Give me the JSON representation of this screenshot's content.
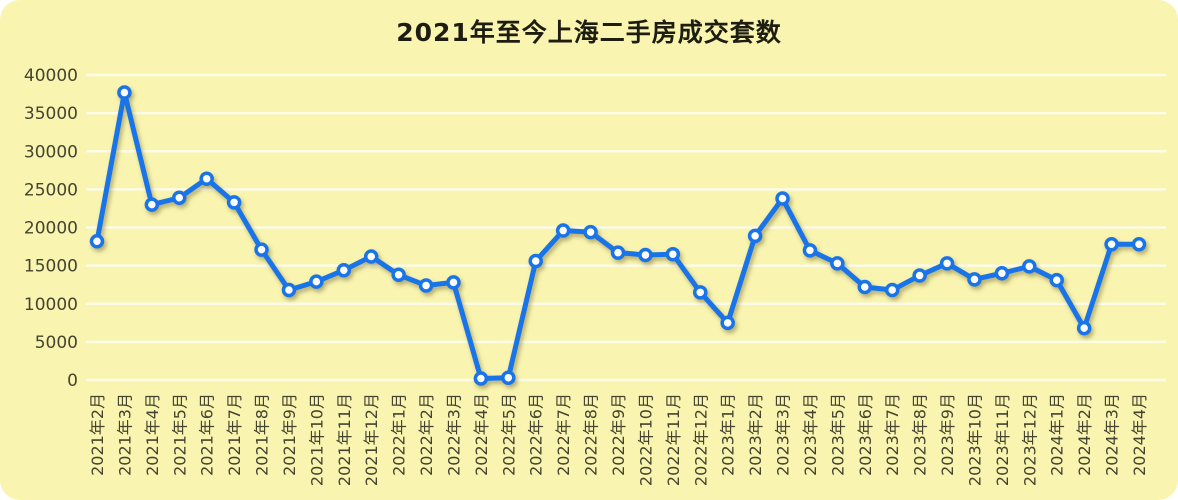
{
  "chart_data": {
    "type": "line",
    "title": "2021年至今上海二手房成交套数",
    "xlabel": "",
    "ylabel": "",
    "ylim": [
      0,
      40000
    ],
    "y_ticks": [
      0,
      5000,
      10000,
      15000,
      20000,
      25000,
      30000,
      35000,
      40000
    ],
    "grid": "horizontal-white",
    "legend": "none",
    "background": "#f9f4b0",
    "line_color": "#1874e8",
    "marker": "circle-white-fill",
    "categories": [
      "2021年2月",
      "2021年3月",
      "2021年4月",
      "2021年5月",
      "2021年6月",
      "2021年7月",
      "2021年8月",
      "2021年9月",
      "2021年10月",
      "2021年11月",
      "2021年12月",
      "2022年1月",
      "2022年2月",
      "2022年3月",
      "2022年4月",
      "2022年5月",
      "2022年6月",
      "2022年7月",
      "2022年8月",
      "2022年9月",
      "2022年10月",
      "2022年11月",
      "2022年12月",
      "2023年1月",
      "2023年2月",
      "2023年3月",
      "2023年4月",
      "2023年5月",
      "2023年6月",
      "2023年7月",
      "2023年8月",
      "2023年9月",
      "2023年10月",
      "2023年11月",
      "2023年12月",
      "2024年1月",
      "2024年2月",
      "2024年3月",
      "2024年4月"
    ],
    "values": [
      18200,
      37700,
      23000,
      23900,
      26400,
      23300,
      17100,
      11800,
      12900,
      14400,
      16200,
      13800,
      12400,
      12800,
      200,
      300,
      15600,
      19600,
      19400,
      16700,
      16400,
      16500,
      11500,
      7500,
      18900,
      23800,
      17000,
      15300,
      12200,
      11800,
      13700,
      15300,
      13200,
      14000,
      14900,
      13100,
      6800,
      17800,
      17800
    ]
  }
}
